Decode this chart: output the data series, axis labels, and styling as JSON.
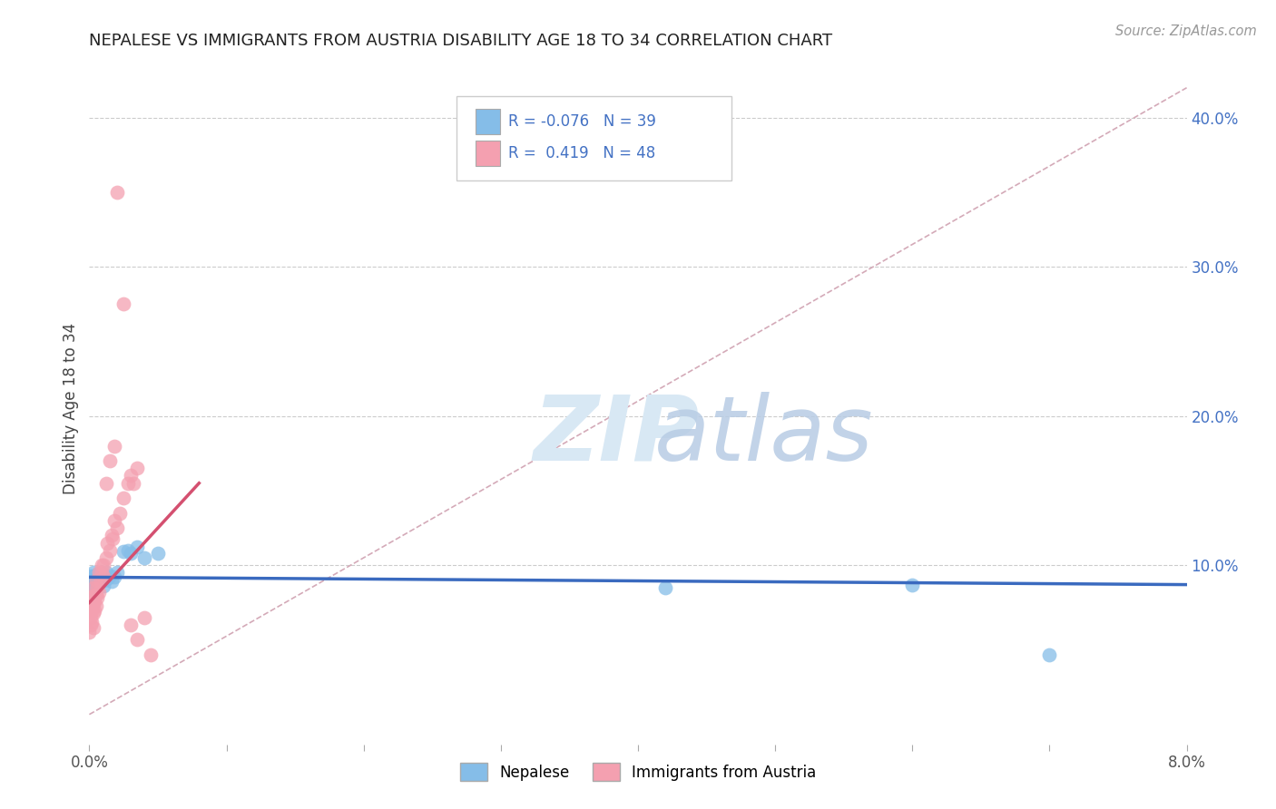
{
  "title": "NEPALESE VS IMMIGRANTS FROM AUSTRIA DISABILITY AGE 18 TO 34 CORRELATION CHART",
  "source": "Source: ZipAtlas.com",
  "ylabel": "Disability Age 18 to 34",
  "xlim": [
    0.0,
    0.08
  ],
  "ylim": [
    -0.02,
    0.43
  ],
  "r1": -0.076,
  "n1": 39,
  "r2": 0.419,
  "n2": 48,
  "color1": "#85bde8",
  "color2": "#f4a0b0",
  "trendline1_color": "#3a6abf",
  "trendline2_color": "#d45070",
  "refline_color": "#d4aab8",
  "legend_label1": "Nepalese",
  "legend_label2": "Immigrants from Austria",
  "background_color": "#ffffff",
  "grid_color": "#cccccc",
  "title_color": "#222222",
  "axis_label_color": "#444444",
  "tick_color": "#4472c4",
  "watermark_zip_color": "#d8e8f4",
  "watermark_atlas_color": "#b8cce4",
  "nepalese_x": [
    0.0,
    0.0,
    0.0001,
    0.0001,
    0.0001,
    0.0002,
    0.0002,
    0.0002,
    0.0003,
    0.0003,
    0.0003,
    0.0004,
    0.0004,
    0.0004,
    0.0005,
    0.0005,
    0.0006,
    0.0006,
    0.0007,
    0.0007,
    0.0008,
    0.0009,
    0.001,
    0.001,
    0.0012,
    0.0013,
    0.0015,
    0.0016,
    0.0018,
    0.002,
    0.0025,
    0.0028,
    0.003,
    0.0035,
    0.004,
    0.005,
    0.042,
    0.06,
    0.07
  ],
  "nepalese_y": [
    0.09,
    0.085,
    0.093,
    0.088,
    0.082,
    0.091,
    0.086,
    0.08,
    0.092,
    0.087,
    0.095,
    0.089,
    0.084,
    0.093,
    0.091,
    0.087,
    0.094,
    0.089,
    0.092,
    0.088,
    0.091,
    0.093,
    0.09,
    0.086,
    0.095,
    0.091,
    0.093,
    0.089,
    0.092,
    0.095,
    0.109,
    0.11,
    0.108,
    0.112,
    0.105,
    0.108,
    0.085,
    0.087,
    0.04
  ],
  "austria_x": [
    0.0,
    0.0001,
    0.0002,
    0.0002,
    0.0003,
    0.0003,
    0.0004,
    0.0004,
    0.0005,
    0.0005,
    0.0006,
    0.0006,
    0.0007,
    0.0008,
    0.0009,
    0.001,
    0.001,
    0.0012,
    0.0013,
    0.0015,
    0.0016,
    0.0017,
    0.0018,
    0.002,
    0.0022,
    0.0025,
    0.0028,
    0.003,
    0.0032,
    0.0035,
    0.0,
    0.0001,
    0.0002,
    0.0003,
    0.0003,
    0.0004,
    0.0005,
    0.0007,
    0.0009,
    0.0012,
    0.0015,
    0.0018,
    0.002,
    0.0025,
    0.003,
    0.0035,
    0.004,
    0.0045
  ],
  "austria_y": [
    0.078,
    0.065,
    0.072,
    0.062,
    0.068,
    0.058,
    0.075,
    0.07,
    0.08,
    0.073,
    0.085,
    0.078,
    0.082,
    0.09,
    0.095,
    0.1,
    0.092,
    0.105,
    0.115,
    0.11,
    0.12,
    0.118,
    0.13,
    0.125,
    0.135,
    0.145,
    0.155,
    0.16,
    0.155,
    0.165,
    0.055,
    0.06,
    0.07,
    0.085,
    0.075,
    0.08,
    0.09,
    0.095,
    0.1,
    0.155,
    0.17,
    0.18,
    0.35,
    0.275,
    0.06,
    0.05,
    0.065,
    0.04
  ],
  "trendline1_x0": 0.0,
  "trendline1_x1": 0.08,
  "trendline1_y0": 0.092,
  "trendline1_y1": 0.087,
  "trendline2_x0": 0.0,
  "trendline2_x1": 0.008,
  "trendline2_y0": 0.075,
  "trendline2_y1": 0.155,
  "refline_x0": 0.0,
  "refline_x1": 0.08,
  "refline_y0": 0.0,
  "refline_y1": 0.42
}
